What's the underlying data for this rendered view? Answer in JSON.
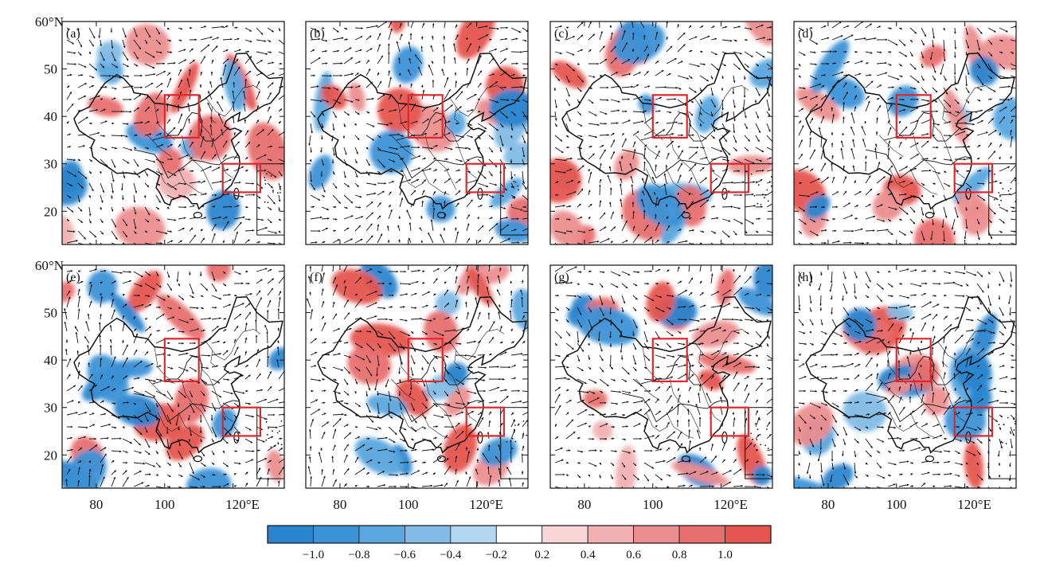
{
  "figure": {
    "lat_axis": {
      "ticks": [
        20,
        30,
        40,
        50,
        60
      ],
      "top_label": "60°N"
    },
    "lon_axis": {
      "ticks": [
        80,
        100,
        120
      ],
      "east_label": "120°E"
    },
    "panels": [
      {
        "id": "a",
        "label": "(a)"
      },
      {
        "id": "b",
        "label": "(b)"
      },
      {
        "id": "c",
        "label": "(c)"
      },
      {
        "id": "d",
        "label": "(d)"
      },
      {
        "id": "e",
        "label": "(e)"
      },
      {
        "id": "f",
        "label": "(f)"
      },
      {
        "id": "g",
        "label": "(g)"
      },
      {
        "id": "h",
        "label": "(h)"
      }
    ],
    "colorbar": {
      "labels": [
        "−1.0",
        "−0.8",
        "−0.6",
        "−0.4",
        "−0.2",
        "0.2",
        "0.4",
        "0.6",
        "0.8",
        "1.0"
      ],
      "colors": [
        "#2a85cf",
        "#3b92d7",
        "#5aa6df",
        "#82bce6",
        "#b2d6f0",
        "#ffffff",
        "#f8d6d8",
        "#f1b1b3",
        "#ec8e8f",
        "#e86f6f",
        "#e65550"
      ]
    },
    "map_extent": {
      "lon": [
        70,
        135
      ],
      "lat": [
        13,
        60
      ]
    },
    "boxes": [
      {
        "name": "north-box",
        "lon": [
          100,
          110
        ],
        "lat": [
          35.5,
          44.5
        ]
      },
      {
        "name": "east-box",
        "lon": [
          117,
          128
        ],
        "lat": [
          24,
          30
        ]
      }
    ]
  }
}
